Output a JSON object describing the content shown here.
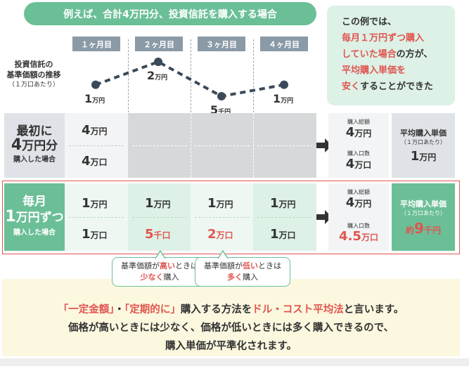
{
  "header": {
    "title": "例えば、合計4万円分、投資信託を購入する場合"
  },
  "callout": {
    "line1": "この例では、",
    "line2": "毎月１万円ずつ購入",
    "line3a": "していた場合",
    "line3b": "の方が、",
    "line4": "平均購入単価を",
    "line5a": "安く",
    "line5b": "することができた"
  },
  "months": [
    "１ヶ月目",
    "２ヶ月目",
    "３ヶ月目",
    "４ヶ月目"
  ],
  "chart_label": {
    "line1": "投資信託の",
    "line2": "基準価額の推移",
    "sub": "（１万口あたり）"
  },
  "chart_data": {
    "type": "line",
    "categories": [
      "１ヶ月目",
      "２ヶ月目",
      "３ヶ月目",
      "４ヶ月目"
    ],
    "values": [
      10000,
      20000,
      5000,
      10000
    ],
    "point_labels": [
      {
        "num": "1",
        "unit": "万円"
      },
      {
        "num": "2",
        "unit": "万円"
      },
      {
        "num": "5",
        "unit": "千円"
      },
      {
        "num": "1",
        "unit": "万円"
      }
    ]
  },
  "row_lump": {
    "label_line1": "最初に",
    "label_num": "4",
    "label_unit": "万円分",
    "label_line3": "購入した場合",
    "amount_num": "4",
    "amount_unit": "万円",
    "units_num": "4",
    "units_unit": "万口",
    "total_amount_label": "購入総額",
    "total_amount_num": "4",
    "total_amount_unit": "万円",
    "total_units_label": "購入口数",
    "total_units_num": "4",
    "total_units_unit": "万口",
    "avg_title": "平均購入単価",
    "avg_sub": "（１万口あたり）",
    "avg_num": "1",
    "avg_unit": "万円"
  },
  "row_monthly": {
    "label_line1": "毎月",
    "label_num": "1",
    "label_unit": "万円ずつ",
    "label_line3": "購入した場合",
    "amounts": [
      {
        "num": "1",
        "unit": "万円"
      },
      {
        "num": "1",
        "unit": "万円"
      },
      {
        "num": "1",
        "unit": "万円"
      },
      {
        "num": "1",
        "unit": "万円"
      }
    ],
    "units": [
      {
        "num": "1",
        "unit": "万口"
      },
      {
        "num": "5",
        "unit": "千口"
      },
      {
        "num": "2",
        "unit": "万口"
      },
      {
        "num": "1",
        "unit": "万口"
      }
    ],
    "total_amount_label": "購入総額",
    "total_amount_num": "4",
    "total_amount_unit": "万円",
    "total_units_label": "購入口数",
    "total_units_num": "4.5",
    "total_units_unit": "万口",
    "avg_title": "平均購入単価",
    "avg_sub": "（１万口あたり）",
    "avg_prefix": "約",
    "avg_num": "9",
    "avg_unit": "千円"
  },
  "bubble_high": {
    "l1a": "基準価額が",
    "l1b": "高い",
    "l1c": "ときは",
    "l2a": "少なく",
    "l2b": "購入"
  },
  "bubble_low": {
    "l1a": "基準価額が",
    "l1b": "低い",
    "l1c": "ときは",
    "l2a": "多く",
    "l2b": "購入"
  },
  "summary": {
    "l1a": "「一定金額」",
    "l1b": "・",
    "l1c": "「定期的に」",
    "l1d": "購入する方法を",
    "l1e": "ドル・コスト平均法",
    "l1f": "と言います。",
    "l2": "価格が高いときには少なく、価格が低いときには多く購入できるので、",
    "l3": "購入単価が平準化されます。"
  },
  "colors": {
    "green": "#6bbf97",
    "red": "#e05550",
    "slate": "#8a9aa6",
    "lightgreen": "#ddf1e6"
  }
}
